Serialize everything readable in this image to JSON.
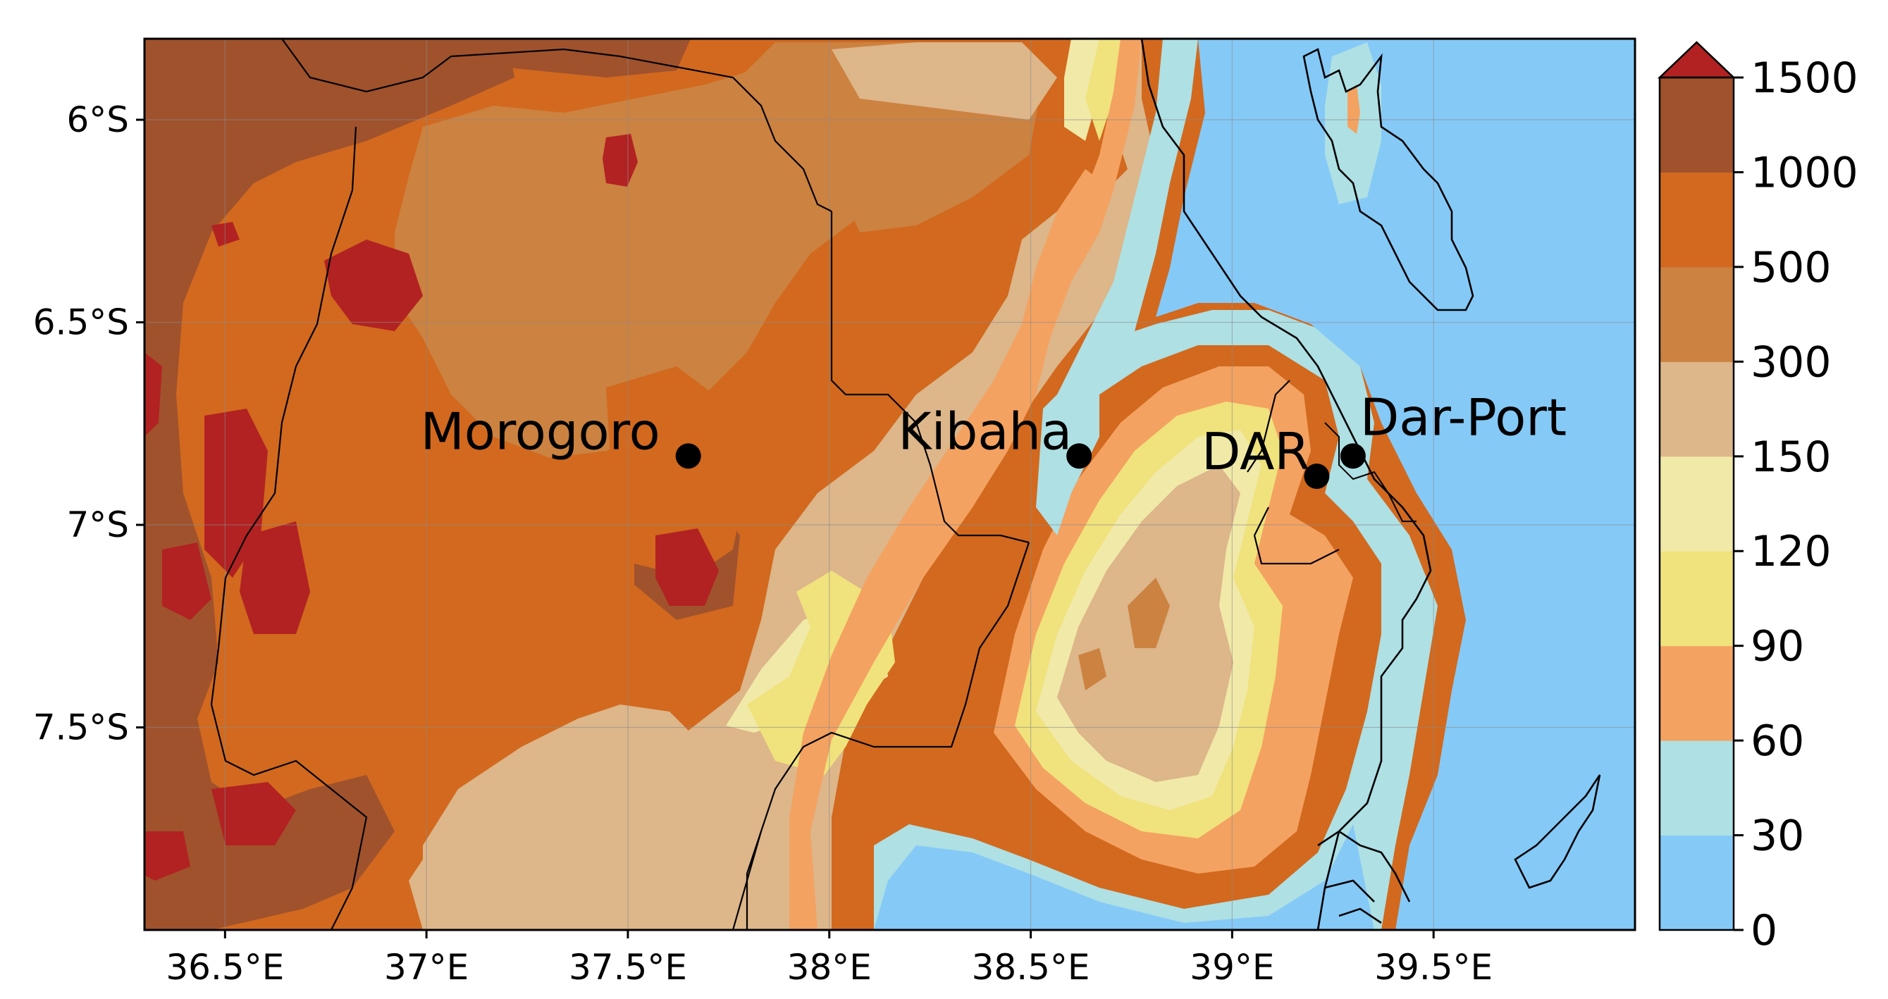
{
  "map": {
    "x_ticks": [
      "36.5°E",
      "37°E",
      "37.5°E",
      "38°E",
      "38.5°E",
      "39°E",
      "39.5°E"
    ],
    "y_ticks": [
      "6°S",
      "6.5°S",
      "7°S",
      "7.5°S"
    ],
    "cities": [
      {
        "name": "Morogoro",
        "lon": 37.65,
        "lat": -6.83
      },
      {
        "name": "Kibaha",
        "lon": 38.62,
        "lat": -6.83
      },
      {
        "name": "DAR",
        "lon": 39.21,
        "lat": -6.88
      },
      {
        "name": "Dar-Port",
        "lon": 39.3,
        "lat": -6.83
      }
    ],
    "extent": {
      "lon_min": 36.3,
      "lon_max": 40.0,
      "lat_min": -8.0,
      "lat_max": -5.8
    },
    "gridlines": true
  },
  "colorbar": {
    "levels": [
      "0",
      "30",
      "60",
      "90",
      "120",
      "150",
      "300",
      "500",
      "1000",
      "1500"
    ],
    "colors": [
      "#85c9f7",
      "#aee0e4",
      "#f4a261",
      "#f0e27c",
      "#f1e9a8",
      "#ddb68a",
      "#cc8240",
      "#d2691e",
      "#a0522d",
      "#b22222"
    ],
    "extend": "max"
  }
}
